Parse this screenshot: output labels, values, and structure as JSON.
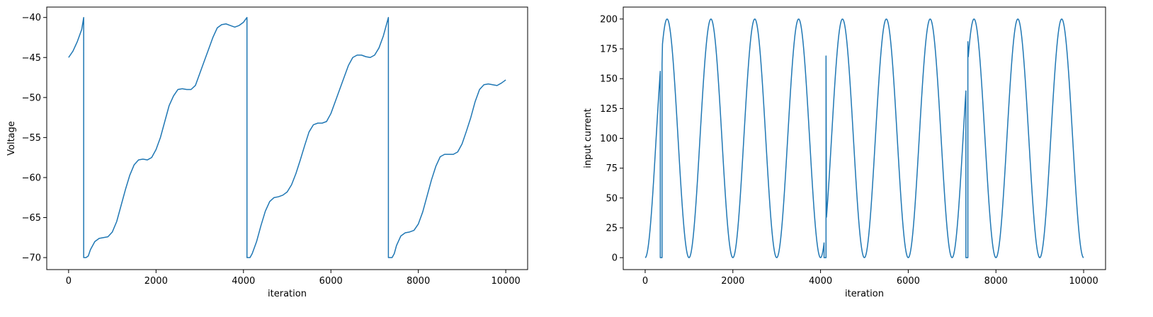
{
  "chart_data": [
    {
      "type": "line",
      "title": "",
      "xlabel": "iteration",
      "ylabel": "Voltage",
      "xlim": [
        -500,
        10500
      ],
      "ylim": [
        -71.5,
        -38.7
      ],
      "xticks": [
        0,
        2000,
        4000,
        6000,
        8000,
        10000
      ],
      "xtick_labels": [
        "0",
        "2000",
        "4000",
        "6000",
        "8000",
        "10000"
      ],
      "yticks": [
        -70,
        -65,
        -60,
        -55,
        -50,
        -45,
        -40
      ],
      "ytick_labels": [
        "−70",
        "−65",
        "−60",
        "−55",
        "−50",
        "−45",
        "−40"
      ],
      "grid": false,
      "color": "#1f77b4",
      "series": [
        {
          "x": [
            0,
            100,
            200,
            300,
            345,
            345,
            400,
            450,
            500,
            600,
            700,
            800,
            900,
            1000,
            1100,
            1200,
            1300,
            1400,
            1500,
            1600,
            1700,
            1800,
            1900,
            2000,
            2100,
            2200,
            2300,
            2400,
            2500,
            2600,
            2700,
            2800,
            2900,
            3000,
            3100,
            3200,
            3300,
            3400,
            3500,
            3600,
            3700,
            3800,
            3900,
            4000,
            4080,
            4080,
            4150,
            4200,
            4300,
            4400,
            4500,
            4600,
            4700,
            4800,
            4900,
            5000,
            5100,
            5200,
            5300,
            5400,
            5500,
            5600,
            5700,
            5800,
            5900,
            6000,
            6100,
            6200,
            6300,
            6400,
            6500,
            6600,
            6700,
            6800,
            6900,
            7000,
            7100,
            7200,
            7315,
            7315,
            7400,
            7450,
            7500,
            7600,
            7700,
            7800,
            7900,
            8000,
            8100,
            8200,
            8300,
            8400,
            8500,
            8600,
            8700,
            8800,
            8900,
            9000,
            9100,
            9200,
            9300,
            9400,
            9500,
            9600,
            9700,
            9800,
            9900,
            10000
          ],
          "y": [
            -45,
            -44.2,
            -43,
            -41.5,
            -40,
            -70,
            -70,
            -69.8,
            -69,
            -68,
            -67.6,
            -67.5,
            -67.4,
            -66.8,
            -65.5,
            -63.5,
            -61.5,
            -59.7,
            -58.4,
            -57.8,
            -57.7,
            -57.8,
            -57.5,
            -56.5,
            -55,
            -53,
            -51,
            -49.8,
            -49,
            -48.9,
            -49,
            -49,
            -48.5,
            -47,
            -45.5,
            -44,
            -42.5,
            -41.3,
            -40.9,
            -40.8,
            -41,
            -41.2,
            -41,
            -40.6,
            -40,
            -70,
            -70,
            -69.5,
            -68,
            -66,
            -64.2,
            -63,
            -62.5,
            -62.4,
            -62.2,
            -61.8,
            -60.9,
            -59.5,
            -57.8,
            -56,
            -54.3,
            -53.4,
            -53.2,
            -53.2,
            -53,
            -52,
            -50.5,
            -49,
            -47.5,
            -46,
            -45,
            -44.7,
            -44.7,
            -44.9,
            -45,
            -44.7,
            -43.8,
            -42.3,
            -40,
            -70,
            -70,
            -69.5,
            -68.5,
            -67.3,
            -66.9,
            -66.8,
            -66.6,
            -65.8,
            -64.3,
            -62.3,
            -60.3,
            -58.6,
            -57.4,
            -57.1,
            -57.1,
            -57.1,
            -56.8,
            -55.8,
            -54.2,
            -52.5,
            -50.5,
            -49,
            -48.4,
            -48.3,
            -48.4,
            -48.5,
            -48.2,
            -47.8
          ]
        }
      ]
    },
    {
      "type": "line",
      "title": "",
      "xlabel": "iteration",
      "ylabel": "input current",
      "xlim": [
        -500,
        10500
      ],
      "ylim": [
        -10,
        210
      ],
      "xticks": [
        0,
        2000,
        4000,
        6000,
        8000,
        10000
      ],
      "xtick_labels": [
        "0",
        "2000",
        "4000",
        "6000",
        "8000",
        "10000"
      ],
      "yticks": [
        0,
        25,
        50,
        75,
        100,
        125,
        150,
        175,
        200
      ],
      "ytick_labels": [
        "0",
        "25",
        "50",
        "75",
        "100",
        "125",
        "150",
        "175",
        "200"
      ],
      "grid": false,
      "color": "#1f77b4",
      "series": [
        {
          "sine": {
            "offset": 100,
            "amplitude": 100,
            "period": 1000,
            "x_start": 0,
            "x_end": 10000
          },
          "resets": [
            {
              "x_start": 345,
              "x_end": 385,
              "value": 0,
              "recover": 162
            },
            {
              "x_start": 4080,
              "x_end": 4125,
              "value": 0,
              "recover": 169
            },
            {
              "x_start": 7315,
              "x_end": 7360,
              "value": 0,
              "recover": 181
            }
          ]
        }
      ]
    }
  ]
}
